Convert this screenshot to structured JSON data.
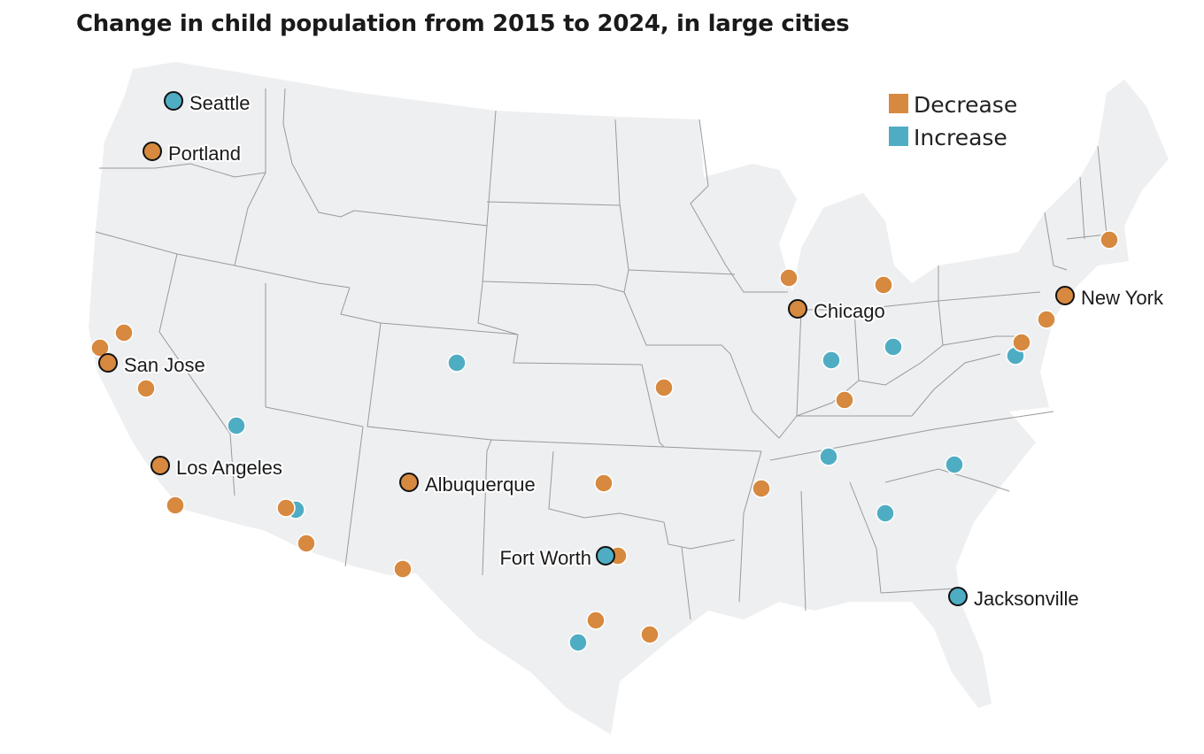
{
  "title": "Change in child population from 2015 to 2024, in large cities",
  "colors": {
    "decrease": "#D6893F",
    "increase": "#4FADC3",
    "land": "#EEEFF1",
    "border": "#9a9a9a"
  },
  "legend": [
    {
      "label": "Decrease",
      "key": "decrease"
    },
    {
      "label": "Increase",
      "key": "increase"
    }
  ],
  "labeled_cities": [
    {
      "name": "Seattle",
      "change": "increase"
    },
    {
      "name": "Portland",
      "change": "decrease"
    },
    {
      "name": "San Jose",
      "change": "decrease"
    },
    {
      "name": "Los Angeles",
      "change": "decrease"
    },
    {
      "name": "Albuquerque",
      "change": "decrease"
    },
    {
      "name": "Fort Worth",
      "change": "increase"
    },
    {
      "name": "Chicago",
      "change": "decrease"
    },
    {
      "name": "New York",
      "change": "decrease"
    },
    {
      "name": "Jacksonville",
      "change": "increase"
    }
  ],
  "other_cities": [
    {
      "change": "decrease"
    },
    {
      "change": "decrease"
    },
    {
      "change": "decrease"
    },
    {
      "change": "increase"
    },
    {
      "change": "decrease"
    },
    {
      "change": "increase"
    },
    {
      "change": "decrease"
    },
    {
      "change": "decrease"
    },
    {
      "change": "decrease"
    },
    {
      "change": "increase"
    },
    {
      "change": "decrease"
    },
    {
      "change": "decrease"
    },
    {
      "change": "decrease"
    },
    {
      "change": "decrease"
    },
    {
      "change": "increase"
    },
    {
      "change": "decrease"
    },
    {
      "change": "increase"
    },
    {
      "change": "decrease"
    },
    {
      "change": "decrease"
    },
    {
      "change": "increase"
    },
    {
      "change": "decrease"
    },
    {
      "change": "decrease"
    },
    {
      "change": "increase"
    },
    {
      "change": "increase"
    },
    {
      "change": "increase"
    },
    {
      "change": "increase"
    }
  ]
}
